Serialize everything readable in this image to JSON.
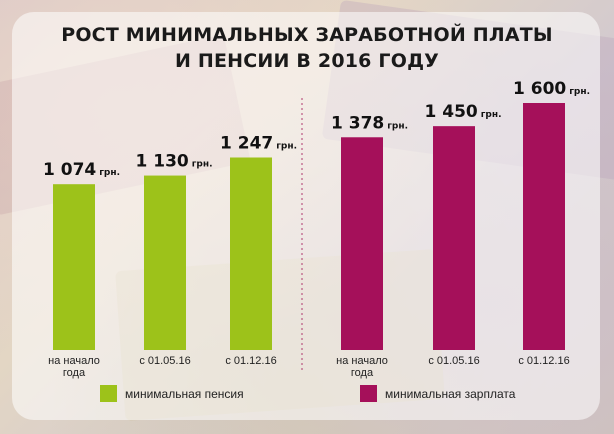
{
  "title_line1": "РОСТ МИНИМАЛЬНЫХ ЗАРАБОТНОЙ ПЛАТЫ",
  "title_line2": "И ПЕНСИИ В 2016 ГОДУ",
  "colors": {
    "pension": "#9dc21a",
    "salary": "#a5105a"
  },
  "chart_data": {
    "type": "bar",
    "title": "РОСТ МИНИМАЛЬНЫХ ЗАРАБОТНОЙ ПЛАТЫ И ПЕНСИИ В 2016 ГОДУ",
    "categories": [
      [
        "на начало",
        "года"
      ],
      "с 01.05.16",
      "с 01.12.16"
    ],
    "unit": "грн.",
    "series": [
      {
        "name": "минимальная пенсия",
        "color": "#9dc21a",
        "values": [
          1074,
          1130,
          1247
        ],
        "labels": [
          "1 074",
          "1 130",
          "1 247"
        ]
      },
      {
        "name": "минимальная зарплата",
        "color": "#a5105a",
        "values": [
          1378,
          1450,
          1600
        ],
        "labels": [
          "1 378",
          "1 450",
          "1 600"
        ]
      }
    ],
    "ylim": [
      0,
      1600
    ],
    "grid": false,
    "legend": "bottom"
  }
}
